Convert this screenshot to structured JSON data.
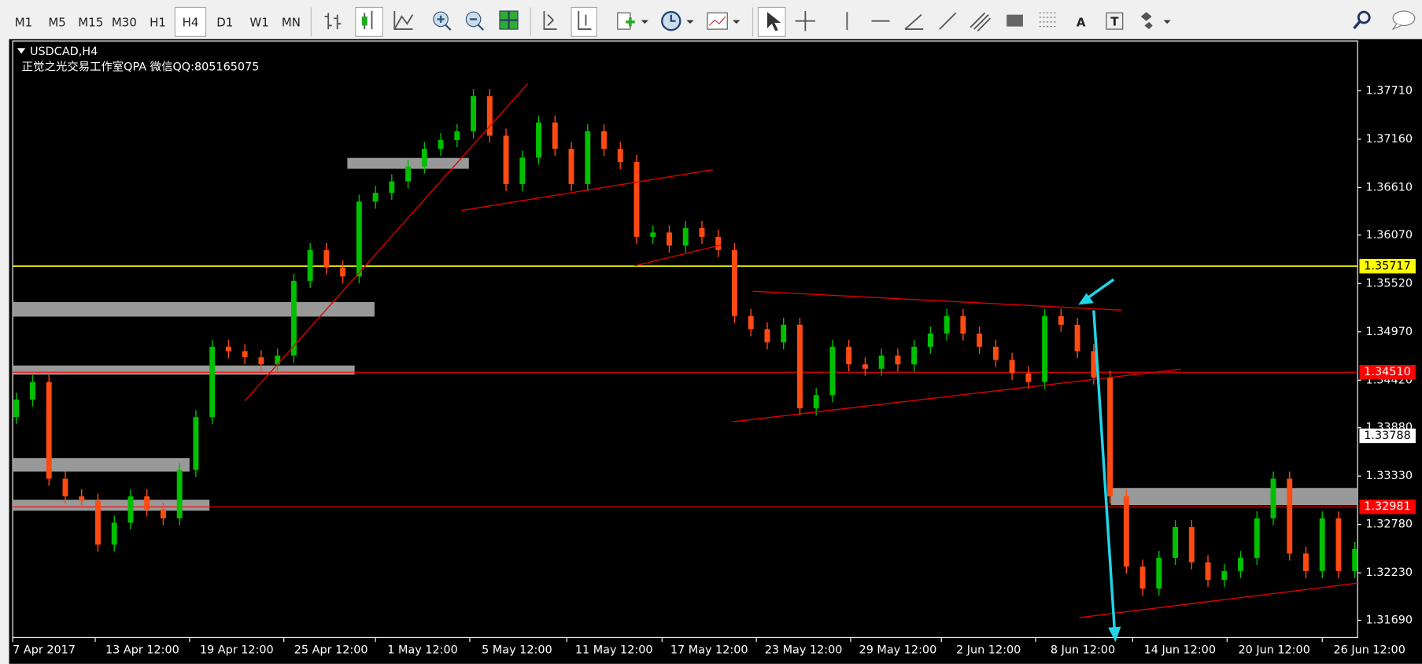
{
  "toolbar": {
    "timeframes": [
      "M1",
      "M5",
      "M15",
      "M30",
      "H1",
      "H4",
      "D1",
      "W1",
      "MN"
    ],
    "active": "H4"
  },
  "chart": {
    "symbol": "USDCAD,H4",
    "caption": "正觉之光交易工作室QPA 微信QQ:805165075",
    "up_color": "#00c000",
    "down_color": "#ff4a12",
    "price_ticks": [
      {
        "value": 1.3771,
        "label": "1.37710"
      },
      {
        "value": 1.3716,
        "label": "1.37160"
      },
      {
        "value": 1.3661,
        "label": "1.36610"
      },
      {
        "value": 1.3607,
        "label": "1.36070"
      },
      {
        "value": 1.3552,
        "label": "1.35520"
      },
      {
        "value": 1.3497,
        "label": "1.34970"
      },
      {
        "value": 1.3442,
        "label": "1.34420"
      },
      {
        "value": 1.3388,
        "label": "1.33880"
      },
      {
        "value": 1.3333,
        "label": "1.33330"
      },
      {
        "value": 1.3278,
        "label": "1.32780"
      },
      {
        "value": 1.3223,
        "label": "1.32230"
      },
      {
        "value": 1.3169,
        "label": "1.31690"
      }
    ],
    "dates": [
      "7 Apr 2017",
      "13 Apr 12:00",
      "19 Apr 12:00",
      "25 Apr 12:00",
      "1 May 12:00",
      "5 May 12:00",
      "11 May 12:00",
      "17 May 12:00",
      "23 May 12:00",
      "29 May 12:00",
      "2 Jun 12:00",
      "8 Jun 12:00",
      "14 Jun 12:00",
      "20 Jun 12:00",
      "26 Jun 12:00"
    ],
    "levels": [
      {
        "price": 1.35717,
        "color": "#ffff00",
        "text_color": "#000000",
        "line": true
      },
      {
        "price": 1.3451,
        "label": "1.34510",
        "color": "#ff0000",
        "text_color": "#ffffff",
        "line": true
      },
      {
        "price": 1.33788,
        "color": "#ffffff",
        "text_color": "#000000",
        "line": false
      },
      {
        "price": 1.32981,
        "color": "#ff0000",
        "text_color": "#ffffff",
        "line": true
      }
    ],
    "candles": [
      [
        1.34,
        1.3428,
        1.3392,
        1.342
      ],
      [
        1.342,
        1.3448,
        1.3412,
        1.344
      ],
      [
        1.344,
        1.3448,
        1.3322,
        1.333
      ],
      [
        1.333,
        1.3338,
        1.3302,
        1.331
      ],
      [
        1.331,
        1.3318,
        1.3297,
        1.3305
      ],
      [
        1.3305,
        1.3313,
        1.3247,
        1.3255
      ],
      [
        1.3255,
        1.3288,
        1.3247,
        1.328
      ],
      [
        1.328,
        1.3318,
        1.3272,
        1.331
      ],
      [
        1.331,
        1.3318,
        1.3287,
        1.3295
      ],
      [
        1.3295,
        1.3303,
        1.3277,
        1.3285
      ],
      [
        1.3285,
        1.3348,
        1.3277,
        1.334
      ],
      [
        1.334,
        1.3408,
        1.3332,
        1.34
      ],
      [
        1.34,
        1.3488,
        1.3392,
        1.348
      ],
      [
        1.348,
        1.3488,
        1.3467,
        1.3475
      ],
      [
        1.3475,
        1.3483,
        1.346,
        1.3468
      ],
      [
        1.3468,
        1.3476,
        1.3452,
        1.346
      ],
      [
        1.346,
        1.3478,
        1.3452,
        1.347
      ],
      [
        1.347,
        1.3563,
        1.3462,
        1.3555
      ],
      [
        1.3555,
        1.3598,
        1.3547,
        1.359
      ],
      [
        1.359,
        1.3598,
        1.3562,
        1.357
      ],
      [
        1.357,
        1.3578,
        1.3552,
        1.356
      ],
      [
        1.356,
        1.3653,
        1.3552,
        1.3645
      ],
      [
        1.3645,
        1.3663,
        1.3637,
        1.3655
      ],
      [
        1.3655,
        1.3676,
        1.3647,
        1.3668
      ],
      [
        1.3668,
        1.3693,
        1.366,
        1.3685
      ],
      [
        1.3685,
        1.3713,
        1.3677,
        1.3705
      ],
      [
        1.3705,
        1.3723,
        1.3697,
        1.3715
      ],
      [
        1.3715,
        1.3733,
        1.3707,
        1.3725
      ],
      [
        1.3725,
        1.3773,
        1.3717,
        1.3765
      ],
      [
        1.3765,
        1.3773,
        1.3712,
        1.372
      ],
      [
        1.372,
        1.3728,
        1.3657,
        1.3665
      ],
      [
        1.3665,
        1.3703,
        1.3657,
        1.3695
      ],
      [
        1.3695,
        1.3743,
        1.3687,
        1.3735
      ],
      [
        1.3735,
        1.3743,
        1.3697,
        1.3705
      ],
      [
        1.3705,
        1.3713,
        1.3657,
        1.3665
      ],
      [
        1.3665,
        1.3733,
        1.3657,
        1.3725
      ],
      [
        1.3725,
        1.3733,
        1.3697,
        1.3705
      ],
      [
        1.3705,
        1.3713,
        1.3682,
        1.369
      ],
      [
        1.369,
        1.3698,
        1.3597,
        1.3605
      ],
      [
        1.3605,
        1.3618,
        1.3597,
        1.361
      ],
      [
        1.361,
        1.3618,
        1.3587,
        1.3595
      ],
      [
        1.3595,
        1.3623,
        1.3587,
        1.3615
      ],
      [
        1.3615,
        1.3623,
        1.3597,
        1.3605
      ],
      [
        1.3605,
        1.3613,
        1.3582,
        1.359
      ],
      [
        1.359,
        1.3598,
        1.3507,
        1.3515
      ],
      [
        1.3515,
        1.3523,
        1.3492,
        1.35
      ],
      [
        1.35,
        1.3508,
        1.3477,
        1.3485
      ],
      [
        1.3485,
        1.3513,
        1.3477,
        1.3505
      ],
      [
        1.3505,
        1.3513,
        1.3402,
        1.341
      ],
      [
        1.341,
        1.3433,
        1.3402,
        1.3425
      ],
      [
        1.3425,
        1.3488,
        1.3417,
        1.348
      ],
      [
        1.348,
        1.3488,
        1.3452,
        1.346
      ],
      [
        1.346,
        1.3468,
        1.3447,
        1.3455
      ],
      [
        1.3455,
        1.3478,
        1.3447,
        1.347
      ],
      [
        1.347,
        1.3478,
        1.3452,
        1.346
      ],
      [
        1.346,
        1.3488,
        1.3452,
        1.348
      ],
      [
        1.348,
        1.3503,
        1.3472,
        1.3495
      ],
      [
        1.3495,
        1.3523,
        1.3487,
        1.3515
      ],
      [
        1.3515,
        1.3523,
        1.3487,
        1.3495
      ],
      [
        1.3495,
        1.3503,
        1.3472,
        1.348
      ],
      [
        1.348,
        1.3488,
        1.3457,
        1.3465
      ],
      [
        1.3465,
        1.3473,
        1.3442,
        1.345
      ],
      [
        1.345,
        1.3458,
        1.3432,
        1.344
      ],
      [
        1.344,
        1.3523,
        1.3432,
        1.3515
      ],
      [
        1.3515,
        1.3523,
        1.3497,
        1.3505
      ],
      [
        1.3505,
        1.3513,
        1.3467,
        1.3475
      ],
      [
        1.3475,
        1.3483,
        1.3437,
        1.3445
      ],
      [
        1.3445,
        1.3453,
        1.3302,
        1.331
      ],
      [
        1.331,
        1.3318,
        1.3222,
        1.323
      ],
      [
        1.323,
        1.3238,
        1.3197,
        1.3205
      ],
      [
        1.3205,
        1.3248,
        1.3197,
        1.324
      ],
      [
        1.324,
        1.3283,
        1.3232,
        1.3275
      ],
      [
        1.3275,
        1.3283,
        1.3227,
        1.3235
      ],
      [
        1.3235,
        1.3243,
        1.3207,
        1.3215
      ],
      [
        1.3215,
        1.3233,
        1.3207,
        1.3225
      ],
      [
        1.3225,
        1.3248,
        1.3217,
        1.324
      ],
      [
        1.324,
        1.3293,
        1.3232,
        1.3285
      ],
      [
        1.3285,
        1.3338,
        1.3277,
        1.333
      ],
      [
        1.333,
        1.3338,
        1.3237,
        1.3245
      ],
      [
        1.3245,
        1.3253,
        1.3217,
        1.3225
      ],
      [
        1.3225,
        1.3293,
        1.3217,
        1.3285
      ],
      [
        1.3285,
        1.3293,
        1.3217,
        1.3225
      ],
      [
        1.3225,
        1.3258,
        1.3217,
        1.325
      ]
    ]
  }
}
